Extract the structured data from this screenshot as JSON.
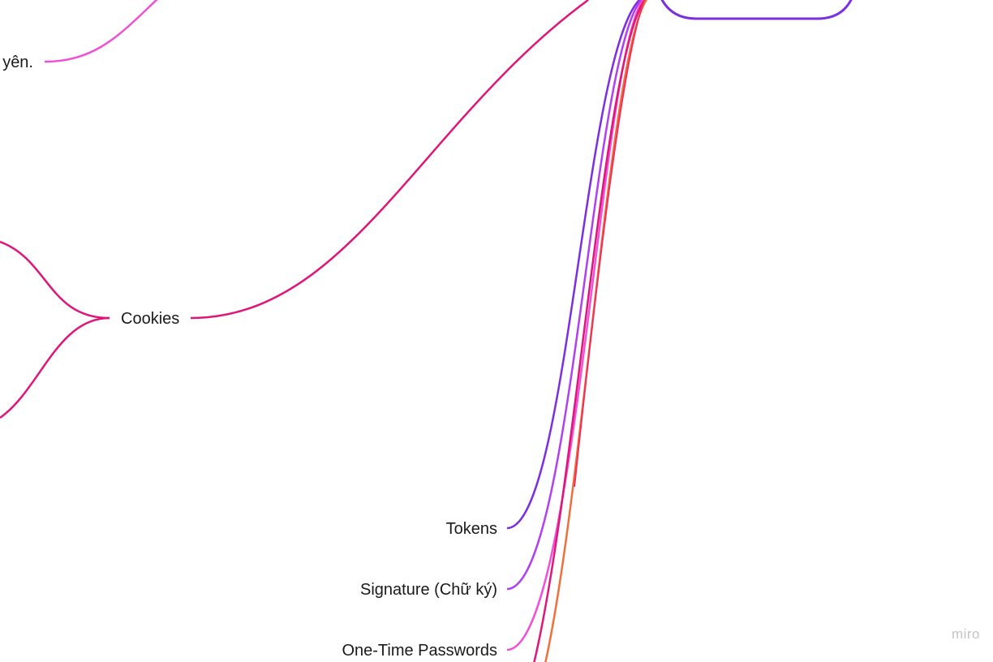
{
  "mindmap": {
    "nodes": {
      "partial_left": "yên.",
      "cookies": "Cookies",
      "tokens": "Tokens",
      "signature": "Signature (Chữ ký)",
      "otp": "One-Time Passwords"
    },
    "colors": {
      "magenta": "#e0157a",
      "pink": "#f050d8",
      "violet": "#7b2fe0",
      "purple": "#b040f0",
      "orange": "#f0703a",
      "red": "#f0305a"
    }
  },
  "watermark": "miro"
}
